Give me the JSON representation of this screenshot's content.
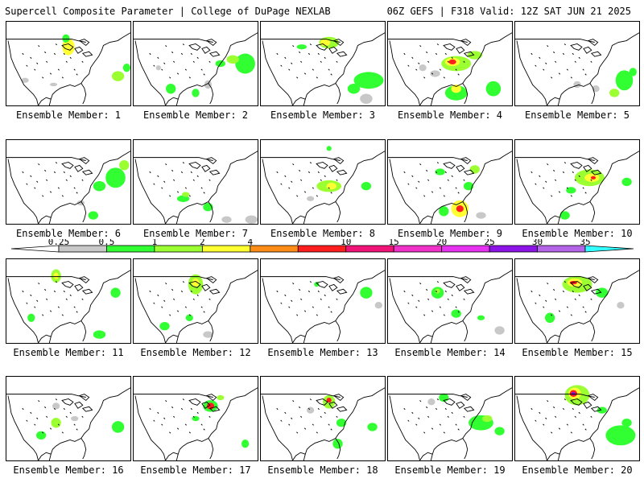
{
  "header": {
    "left_title": "Supercell Composite Parameter | College of DuPage NEXLAB",
    "right_title": "06Z GEFS | F318 Valid: 12Z SAT JUN 21 2025"
  },
  "colorbar": {
    "levels": [
      "0.25",
      "0.5",
      "1",
      "2",
      "4",
      "7",
      "10",
      "15",
      "20",
      "25",
      "30",
      "35"
    ],
    "colors": [
      "#c8c8c8",
      "#32ff32",
      "#9bff32",
      "#ffff32",
      "#ff8c19",
      "#ff1e1e",
      "#f01478",
      "#f032c8",
      "#e632f0",
      "#8c14e6",
      "#b464e6",
      "#32ffff"
    ]
  },
  "members": [
    {
      "label": "Ensemble Member: 1",
      "blobs": [
        [
          0.5,
          0.3,
          0.05,
          0.1,
          3
        ],
        [
          0.48,
          0.2,
          0.03,
          0.05,
          1
        ],
        [
          0.9,
          0.65,
          0.05,
          0.06,
          2
        ],
        [
          0.97,
          0.55,
          0.03,
          0.05,
          1
        ],
        [
          0.15,
          0.7,
          0.03,
          0.03,
          0
        ],
        [
          0.38,
          0.75,
          0.03,
          0.02,
          0
        ]
      ]
    },
    {
      "label": "Ensemble Member: 2",
      "blobs": [
        [
          0.9,
          0.5,
          0.08,
          0.12,
          1
        ],
        [
          0.8,
          0.45,
          0.05,
          0.05,
          2
        ],
        [
          0.7,
          0.5,
          0.04,
          0.04,
          1
        ],
        [
          0.3,
          0.8,
          0.04,
          0.06,
          1
        ],
        [
          0.5,
          0.85,
          0.03,
          0.05,
          1
        ],
        [
          0.6,
          0.75,
          0.03,
          0.05,
          0
        ],
        [
          0.2,
          0.55,
          0.02,
          0.03,
          0
        ]
      ]
    },
    {
      "label": "Ensemble Member: 3",
      "blobs": [
        [
          0.55,
          0.25,
          0.08,
          0.07,
          2
        ],
        [
          0.52,
          0.25,
          0.04,
          0.04,
          3
        ],
        [
          0.33,
          0.3,
          0.04,
          0.03,
          1
        ],
        [
          0.87,
          0.7,
          0.12,
          0.1,
          1
        ],
        [
          0.75,
          0.8,
          0.05,
          0.06,
          1
        ],
        [
          0.85,
          0.92,
          0.05,
          0.06,
          0
        ]
      ]
    },
    {
      "label": "Ensemble Member: 4",
      "blobs": [
        [
          0.55,
          0.5,
          0.12,
          0.09,
          2
        ],
        [
          0.52,
          0.48,
          0.06,
          0.05,
          3
        ],
        [
          0.52,
          0.48,
          0.03,
          0.03,
          5
        ],
        [
          0.7,
          0.4,
          0.06,
          0.05,
          2
        ],
        [
          0.55,
          0.85,
          0.09,
          0.09,
          1
        ],
        [
          0.55,
          0.8,
          0.04,
          0.05,
          3
        ],
        [
          0.85,
          0.8,
          0.06,
          0.09,
          1
        ],
        [
          0.38,
          0.62,
          0.04,
          0.04,
          0
        ],
        [
          0.28,
          0.55,
          0.03,
          0.04,
          0
        ]
      ]
    },
    {
      "label": "Ensemble Member: 5",
      "blobs": [
        [
          0.88,
          0.7,
          0.07,
          0.12,
          1
        ],
        [
          0.8,
          0.85,
          0.04,
          0.05,
          2
        ],
        [
          0.95,
          0.6,
          0.03,
          0.05,
          1
        ],
        [
          0.5,
          0.75,
          0.03,
          0.04,
          0
        ],
        [
          0.65,
          0.8,
          0.03,
          0.04,
          0
        ]
      ]
    },
    {
      "label": "Ensemble Member: 6",
      "blobs": [
        [
          0.88,
          0.45,
          0.08,
          0.12,
          1
        ],
        [
          0.95,
          0.3,
          0.04,
          0.06,
          2
        ],
        [
          0.75,
          0.55,
          0.05,
          0.06,
          1
        ],
        [
          0.7,
          0.9,
          0.04,
          0.05,
          1
        ],
        [
          0.6,
          0.75,
          0.03,
          0.03,
          0
        ]
      ]
    },
    {
      "label": "Ensemble Member: 7",
      "blobs": [
        [
          0.4,
          0.7,
          0.05,
          0.04,
          1
        ],
        [
          0.42,
          0.65,
          0.03,
          0.03,
          2
        ],
        [
          0.6,
          0.8,
          0.04,
          0.05,
          1
        ],
        [
          0.95,
          0.95,
          0.05,
          0.05,
          0
        ],
        [
          0.75,
          0.95,
          0.04,
          0.04,
          0
        ]
      ]
    },
    {
      "label": "Ensemble Member: 8",
      "blobs": [
        [
          0.55,
          0.55,
          0.1,
          0.07,
          2
        ],
        [
          0.57,
          0.55,
          0.04,
          0.04,
          3
        ],
        [
          0.85,
          0.55,
          0.04,
          0.05,
          1
        ],
        [
          0.55,
          0.1,
          0.02,
          0.03,
          1
        ],
        [
          0.4,
          0.7,
          0.03,
          0.03,
          0
        ]
      ]
    },
    {
      "label": "Ensemble Member: 9",
      "blobs": [
        [
          0.58,
          0.82,
          0.07,
          0.1,
          3
        ],
        [
          0.58,
          0.82,
          0.03,
          0.04,
          5
        ],
        [
          0.7,
          0.35,
          0.04,
          0.05,
          2
        ],
        [
          0.42,
          0.38,
          0.04,
          0.04,
          1
        ],
        [
          0.65,
          0.55,
          0.04,
          0.05,
          1
        ],
        [
          0.75,
          0.9,
          0.04,
          0.04,
          0
        ],
        [
          0.45,
          0.85,
          0.04,
          0.06,
          1
        ]
      ]
    },
    {
      "label": "Ensemble Member: 10",
      "blobs": [
        [
          0.6,
          0.45,
          0.12,
          0.1,
          2
        ],
        [
          0.62,
          0.45,
          0.06,
          0.05,
          3
        ],
        [
          0.63,
          0.45,
          0.02,
          0.02,
          5
        ],
        [
          0.9,
          0.5,
          0.04,
          0.05,
          1
        ],
        [
          0.45,
          0.6,
          0.04,
          0.04,
          1
        ],
        [
          0.4,
          0.9,
          0.04,
          0.05,
          1
        ]
      ]
    },
    {
      "label": "Ensemble Member: 11",
      "blobs": [
        [
          0.4,
          0.2,
          0.04,
          0.08,
          2
        ],
        [
          0.4,
          0.2,
          0.02,
          0.04,
          3
        ],
        [
          0.88,
          0.4,
          0.04,
          0.06,
          1
        ],
        [
          0.2,
          0.7,
          0.03,
          0.05,
          1
        ],
        [
          0.75,
          0.9,
          0.05,
          0.05,
          1
        ]
      ]
    },
    {
      "label": "Ensemble Member: 12",
      "blobs": [
        [
          0.5,
          0.3,
          0.06,
          0.12,
          2
        ],
        [
          0.5,
          0.28,
          0.03,
          0.05,
          3
        ],
        [
          0.25,
          0.8,
          0.04,
          0.05,
          1
        ],
        [
          0.45,
          0.7,
          0.03,
          0.04,
          1
        ],
        [
          0.6,
          0.9,
          0.04,
          0.04,
          0
        ]
      ]
    },
    {
      "label": "Ensemble Member: 13",
      "blobs": [
        [
          0.85,
          0.4,
          0.05,
          0.07,
          1
        ],
        [
          0.95,
          0.55,
          0.03,
          0.04,
          0
        ],
        [
          0.45,
          0.3,
          0.02,
          0.03,
          1
        ]
      ]
    },
    {
      "label": "Ensemble Member: 14",
      "blobs": [
        [
          0.4,
          0.4,
          0.05,
          0.07,
          1
        ],
        [
          0.4,
          0.38,
          0.02,
          0.03,
          2
        ],
        [
          0.55,
          0.65,
          0.04,
          0.05,
          1
        ],
        [
          0.9,
          0.85,
          0.04,
          0.05,
          0
        ],
        [
          0.75,
          0.7,
          0.03,
          0.03,
          1
        ]
      ]
    },
    {
      "label": "Ensemble Member: 15",
      "blobs": [
        [
          0.5,
          0.3,
          0.12,
          0.1,
          2
        ],
        [
          0.48,
          0.28,
          0.06,
          0.05,
          3
        ],
        [
          0.47,
          0.28,
          0.03,
          0.02,
          5
        ],
        [
          0.7,
          0.4,
          0.05,
          0.06,
          1
        ],
        [
          0.28,
          0.7,
          0.04,
          0.06,
          1
        ],
        [
          0.85,
          0.55,
          0.03,
          0.04,
          0
        ]
      ]
    },
    {
      "label": "Ensemble Member: 16",
      "blobs": [
        [
          0.4,
          0.55,
          0.04,
          0.06,
          2
        ],
        [
          0.28,
          0.7,
          0.04,
          0.05,
          1
        ],
        [
          0.9,
          0.6,
          0.05,
          0.07,
          1
        ],
        [
          0.4,
          0.35,
          0.03,
          0.04,
          0
        ],
        [
          0.55,
          0.5,
          0.03,
          0.03,
          0
        ]
      ]
    },
    {
      "label": "Ensemble Member: 17",
      "blobs": [
        [
          0.62,
          0.35,
          0.06,
          0.07,
          1
        ],
        [
          0.62,
          0.35,
          0.03,
          0.04,
          5
        ],
        [
          0.5,
          0.5,
          0.03,
          0.03,
          1
        ],
        [
          0.9,
          0.8,
          0.03,
          0.05,
          1
        ],
        [
          0.7,
          0.25,
          0.03,
          0.03,
          2
        ]
      ]
    },
    {
      "label": "Ensemble Member: 18",
      "blobs": [
        [
          0.55,
          0.3,
          0.05,
          0.08,
          2
        ],
        [
          0.55,
          0.28,
          0.02,
          0.03,
          5
        ],
        [
          0.65,
          0.55,
          0.04,
          0.05,
          1
        ],
        [
          0.62,
          0.8,
          0.04,
          0.06,
          1
        ],
        [
          0.4,
          0.4,
          0.03,
          0.04,
          0
        ],
        [
          0.9,
          0.6,
          0.04,
          0.05,
          1
        ]
      ]
    },
    {
      "label": "Ensemble Member: 19",
      "blobs": [
        [
          0.75,
          0.55,
          0.1,
          0.09,
          1
        ],
        [
          0.8,
          0.5,
          0.04,
          0.04,
          2
        ],
        [
          0.45,
          0.25,
          0.04,
          0.05,
          1
        ],
        [
          0.35,
          0.3,
          0.03,
          0.04,
          0
        ],
        [
          0.9,
          0.65,
          0.04,
          0.05,
          1
        ]
      ]
    },
    {
      "label": "Ensemble Member: 20",
      "blobs": [
        [
          0.5,
          0.22,
          0.1,
          0.12,
          2
        ],
        [
          0.48,
          0.2,
          0.05,
          0.07,
          3
        ],
        [
          0.47,
          0.2,
          0.03,
          0.04,
          5
        ],
        [
          0.47,
          0.2,
          0.015,
          0.02,
          9
        ],
        [
          0.85,
          0.7,
          0.12,
          0.12,
          1
        ],
        [
          0.7,
          0.4,
          0.04,
          0.04,
          1
        ],
        [
          0.9,
          0.55,
          0.04,
          0.05,
          1
        ]
      ]
    }
  ]
}
